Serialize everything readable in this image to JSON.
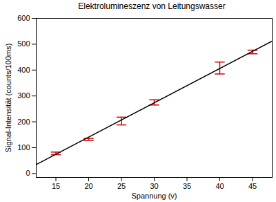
{
  "chart_data": {
    "type": "scatter",
    "title": "Elektrolumineszenz von Leitungswasser",
    "x_label": "Spannung (v)",
    "y_label": "Signal-Intensität (counts/100ms)",
    "xlim": [
      12,
      48
    ],
    "xticks": [
      15,
      20,
      25,
      30,
      35,
      40,
      45
    ],
    "ylim": [
      -15,
      600
    ],
    "yticks": [
      0,
      100,
      200,
      300,
      400,
      500,
      600
    ],
    "grid": false,
    "series": [
      {
        "type": "errorbar",
        "color": "#cc0000",
        "x": [
          15,
          20,
          25,
          30,
          40,
          45
        ],
        "values": [
          78,
          132,
          203,
          275,
          408,
          470
        ],
        "errors": [
          5,
          4,
          15,
          10,
          23,
          7
        ]
      },
      {
        "type": "line",
        "color": "#000000",
        "x": [
          12,
          48
        ],
        "values": [
          35,
          512
        ]
      }
    ]
  }
}
